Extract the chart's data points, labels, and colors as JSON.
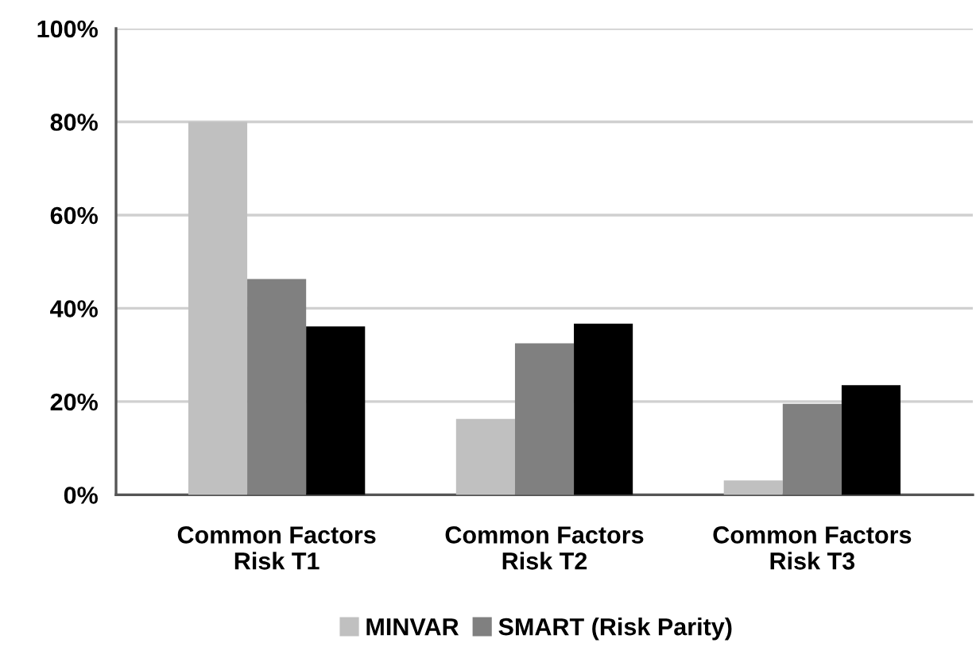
{
  "chart_data": {
    "type": "bar",
    "categories": [
      "Common Factors\nRisk T1",
      "Common Factors\nRisk T2",
      "Common Factors\nRisk T3"
    ],
    "series": [
      {
        "name": "MINVAR",
        "color": "#c0c0c0",
        "values": [
          80,
          16.3,
          3.1
        ]
      },
      {
        "name": "SMART (Risk Parity)",
        "color": "#808080",
        "values": [
          46.3,
          32.5,
          19.5
        ]
      },
      {
        "color": "#000000",
        "values": [
          36.1,
          36.7,
          23.5
        ]
      }
    ],
    "ylim": [
      0,
      100
    ],
    "yticks": [
      {
        "value": 0,
        "label": "0%"
      },
      {
        "value": 20,
        "label": "20%"
      },
      {
        "value": 40,
        "label": "40%"
      },
      {
        "value": 60,
        "label": "60%"
      },
      {
        "value": 80,
        "label": "80%"
      },
      {
        "value": 100,
        "label": "100%"
      }
    ],
    "grid": "y",
    "legend": "bottom"
  }
}
